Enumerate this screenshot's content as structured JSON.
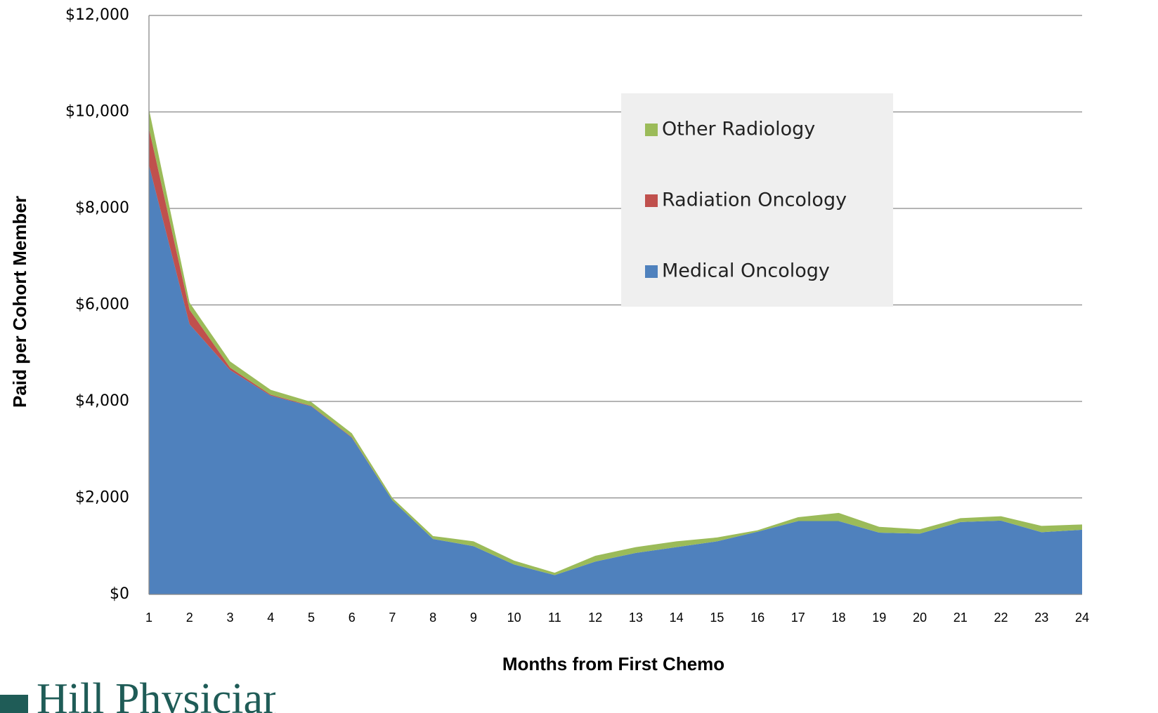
{
  "chart_data": {
    "type": "stacked_area",
    "y_label": "Paid per Cohort Member",
    "x_label": "Months from First Chemo",
    "logo_text": "Hill Physicians",
    "categories": [
      "1",
      "2",
      "3",
      "4",
      "5",
      "6",
      "7",
      "8",
      "9",
      "10",
      "11",
      "12",
      "13",
      "14",
      "15",
      "16",
      "17",
      "18",
      "19",
      "20",
      "21",
      "22",
      "23",
      "24"
    ],
    "series": [
      {
        "name": "Medical Oncology",
        "color": "#4f81bd",
        "values": [
          8900,
          5600,
          4650,
          4120,
          3900,
          3250,
          1950,
          1150,
          1000,
          620,
          400,
          680,
          860,
          980,
          1100,
          1300,
          1520,
          1520,
          1280,
          1260,
          1500,
          1530,
          1290,
          1340
        ]
      },
      {
        "name": "Radiation Oncology",
        "color": "#c0504d",
        "values": [
          760,
          300,
          50,
          20,
          10,
          10,
          0,
          0,
          0,
          0,
          0,
          0,
          0,
          0,
          0,
          0,
          0,
          0,
          0,
          0,
          0,
          0,
          0,
          0
        ]
      },
      {
        "name": "Other Radiology",
        "color": "#9bbb59",
        "values": [
          400,
          150,
          130,
          100,
          80,
          80,
          50,
          60,
          100,
          80,
          50,
          120,
          120,
          120,
          80,
          30,
          80,
          170,
          120,
          90,
          80,
          90,
          130,
          110
        ]
      }
    ],
    "ylim": [
      0,
      12000
    ],
    "yticks": [
      {
        "value": 0,
        "label": "$0"
      },
      {
        "value": 2000,
        "label": "$2,000"
      },
      {
        "value": 4000,
        "label": "$4,000"
      },
      {
        "value": 6000,
        "label": "$6,000"
      },
      {
        "value": 8000,
        "label": "$8,000"
      },
      {
        "value": 10000,
        "label": "$10,000"
      },
      {
        "value": 12000,
        "label": "$12,000"
      }
    ],
    "grid": true
  }
}
